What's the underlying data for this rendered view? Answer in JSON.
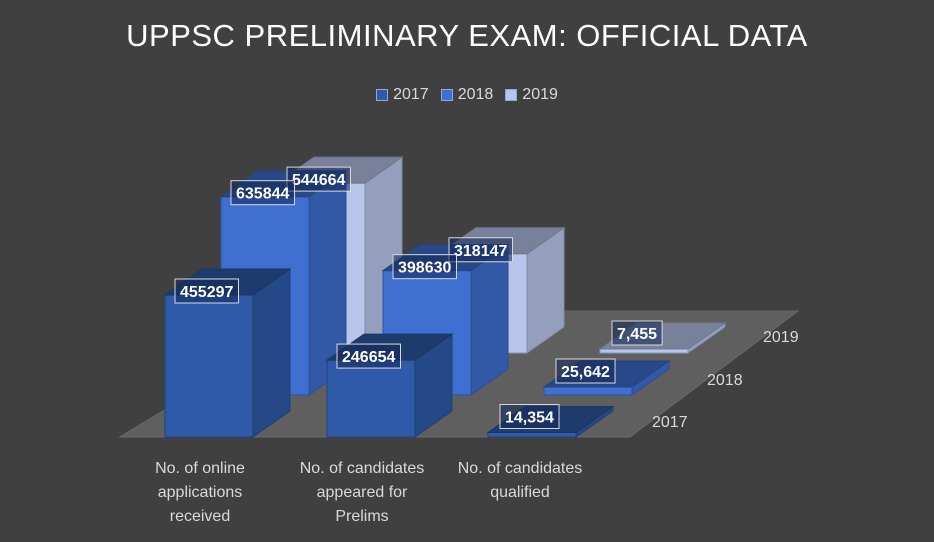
{
  "chart_data": {
    "type": "bar",
    "title": "UPPSC PRELIMINARY EXAM: OFFICIAL DATA",
    "categories": [
      "No. of online applications received",
      "No. of candidates appeared for Prelims",
      "No. of candidates qualified"
    ],
    "category_lines": [
      [
        "No. of online",
        "applications",
        "received"
      ],
      [
        "No. of candidates",
        "appeared for",
        "Prelims"
      ],
      [
        "No. of candidates",
        "qualified"
      ]
    ],
    "series": [
      {
        "name": "2017",
        "values": [
          455297,
          246654,
          14354
        ],
        "labels": [
          "455297",
          "246654",
          "14,354"
        ],
        "color": "#2e5aa8"
      },
      {
        "name": "2018",
        "values": [
          635844,
          398630,
          25642
        ],
        "labels": [
          "635844",
          "398630",
          "25,642"
        ],
        "color": "#3f6fd0"
      },
      {
        "name": "2019",
        "values": [
          544664,
          318147,
          7455
        ],
        "labels": [
          "544664",
          "318147",
          "7,455"
        ],
        "color": "#b9c6ec"
      }
    ],
    "depth_axis": [
      "2017",
      "2018",
      "2019"
    ],
    "legend_position": "top",
    "three_d": true,
    "ylim": [
      0,
      700000
    ]
  }
}
